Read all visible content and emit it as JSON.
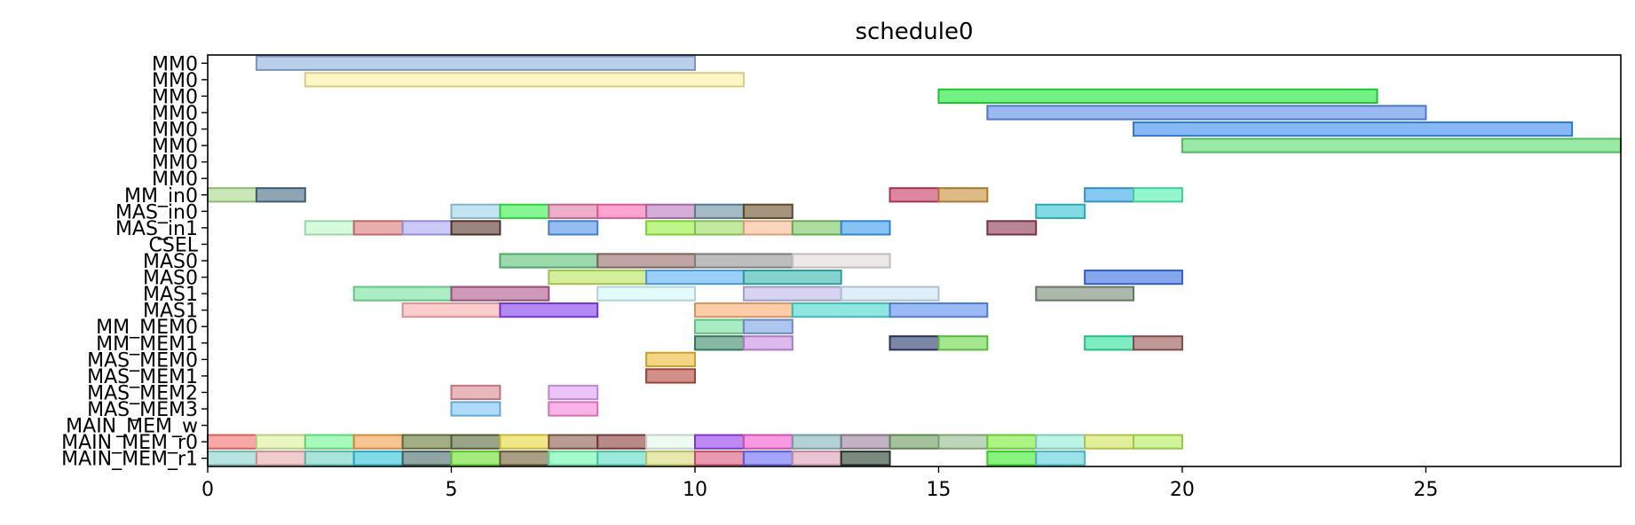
{
  "chart_data": {
    "type": "gantt",
    "title": "schedule0",
    "xlabel": "",
    "ylabel": "",
    "xlim": [
      0,
      29
    ],
    "grid": false,
    "legend": "none",
    "x_ticks": [
      0,
      5,
      10,
      15,
      20,
      25
    ],
    "rows": [
      "MM0",
      "MM0",
      "MM0",
      "MM0",
      "MM0",
      "MM0",
      "MM0",
      "MM0",
      "MM_in0",
      "MAS_in0",
      "MAS_in1",
      "CSEL",
      "MAS0",
      "MAS0",
      "MAS1",
      "MAS1",
      "MM_MEM0",
      "MM_MEM1",
      "MAS_MEM0",
      "MAS_MEM1",
      "MAS_MEM2",
      "MAS_MEM3",
      "MAIN_MEM_w",
      "MAIN_MEM_r0",
      "MAIN_MEM_r1"
    ],
    "tasks": [
      {
        "row": 0,
        "start": 1,
        "end": 10,
        "color": "#8fb2dc"
      },
      {
        "row": 1,
        "start": 2,
        "end": 11,
        "color": "#fdf0a0"
      },
      {
        "row": 2,
        "start": 15,
        "end": 24,
        "color": "#1ee83a"
      },
      {
        "row": 3,
        "start": 16,
        "end": 25,
        "color": "#5b8ee6"
      },
      {
        "row": 4,
        "start": 19,
        "end": 28,
        "color": "#3b8ef0"
      },
      {
        "row": 5,
        "start": 20,
        "end": 29,
        "color": "#5cdc70"
      },
      {
        "row": 8,
        "start": 0,
        "end": 1,
        "color": "#a8d88a"
      },
      {
        "row": 8,
        "start": 1,
        "end": 2,
        "color": "#4a6e86"
      },
      {
        "row": 8,
        "start": 14,
        "end": 15,
        "color": "#c83c64"
      },
      {
        "row": 8,
        "start": 15,
        "end": 16,
        "color": "#c8903c"
      },
      {
        "row": 8,
        "start": 18,
        "end": 19,
        "color": "#3ca8e8"
      },
      {
        "row": 8,
        "start": 19,
        "end": 20,
        "color": "#50f0b0"
      },
      {
        "row": 9,
        "start": 5,
        "end": 6,
        "color": "#9cd4ec"
      },
      {
        "row": 9,
        "start": 6,
        "end": 7,
        "color": "#3cf050"
      },
      {
        "row": 9,
        "start": 7,
        "end": 8,
        "color": "#e07ca8"
      },
      {
        "row": 9,
        "start": 8,
        "end": 9,
        "color": "#fc6cb4"
      },
      {
        "row": 9,
        "start": 9,
        "end": 10,
        "color": "#bc7cc0"
      },
      {
        "row": 9,
        "start": 10,
        "end": 11,
        "color": "#6c90a0"
      },
      {
        "row": 9,
        "start": 11,
        "end": 12,
        "color": "#6c5430"
      },
      {
        "row": 9,
        "start": 17,
        "end": 18,
        "color": "#34c4d4"
      },
      {
        "row": 10,
        "start": 2,
        "end": 3,
        "color": "#bcf8c8"
      },
      {
        "row": 10,
        "start": 3,
        "end": 4,
        "color": "#dc7c7c"
      },
      {
        "row": 10,
        "start": 4,
        "end": 5,
        "color": "#aca8f8"
      },
      {
        "row": 10,
        "start": 5,
        "end": 6,
        "color": "#5c3c30"
      },
      {
        "row": 10,
        "start": 7,
        "end": 8,
        "color": "#5494ec"
      },
      {
        "row": 10,
        "start": 9,
        "end": 10,
        "color": "#98f040"
      },
      {
        "row": 10,
        "start": 10,
        "end": 11,
        "color": "#9cdc64"
      },
      {
        "row": 10,
        "start": 11,
        "end": 12,
        "color": "#fcbc94"
      },
      {
        "row": 10,
        "start": 12,
        "end": 13,
        "color": "#7cc864"
      },
      {
        "row": 10,
        "start": 13,
        "end": 14,
        "color": "#3c9cf0"
      },
      {
        "row": 10,
        "start": 16,
        "end": 17,
        "color": "#8c3c54"
      },
      {
        "row": 12,
        "start": 6,
        "end": 8,
        "color": "#5cc478"
      },
      {
        "row": 12,
        "start": 8,
        "end": 10,
        "color": "#94706c"
      },
      {
        "row": 12,
        "start": 10,
        "end": 12,
        "color": "#949494"
      },
      {
        "row": 12,
        "start": 12,
        "end": 14,
        "color": "#e4dcdc"
      },
      {
        "row": 13,
        "start": 7,
        "end": 9,
        "color": "#bce460"
      },
      {
        "row": 13,
        "start": 9,
        "end": 11,
        "color": "#5cb0f8"
      },
      {
        "row": 13,
        "start": 11,
        "end": 13,
        "color": "#38b8b0"
      },
      {
        "row": 13,
        "start": 18,
        "end": 20,
        "color": "#3c70e4"
      },
      {
        "row": 14,
        "start": 3,
        "end": 5,
        "color": "#78e4a0"
      },
      {
        "row": 14,
        "start": 5,
        "end": 7,
        "color": "#b05c8c"
      },
      {
        "row": 14,
        "start": 8,
        "end": 10,
        "color": "#d4f8f8"
      },
      {
        "row": 14,
        "start": 11,
        "end": 13,
        "color": "#c0b8e8"
      },
      {
        "row": 14,
        "start": 13,
        "end": 15,
        "color": "#cce4f4"
      },
      {
        "row": 14,
        "start": 17,
        "end": 19,
        "color": "#788c78"
      },
      {
        "row": 15,
        "start": 4,
        "end": 6,
        "color": "#fcacac"
      },
      {
        "row": 15,
        "start": 6,
        "end": 8,
        "color": "#8440ec"
      },
      {
        "row": 15,
        "start": 10,
        "end": 12,
        "color": "#fcac74"
      },
      {
        "row": 15,
        "start": 12,
        "end": 14,
        "color": "#4cd8d0"
      },
      {
        "row": 15,
        "start": 14,
        "end": 16,
        "color": "#5c90f0"
      },
      {
        "row": 16,
        "start": 10,
        "end": 11,
        "color": "#74e0a0"
      },
      {
        "row": 16,
        "start": 11,
        "end": 12,
        "color": "#7ca4e4"
      },
      {
        "row": 17,
        "start": 10,
        "end": 11,
        "color": "#3c8c6c"
      },
      {
        "row": 17,
        "start": 11,
        "end": 12,
        "color": "#c890e4"
      },
      {
        "row": 17,
        "start": 14,
        "end": 15,
        "color": "#2c3c6c"
      },
      {
        "row": 17,
        "start": 15,
        "end": 16,
        "color": "#6cd848"
      },
      {
        "row": 17,
        "start": 18,
        "end": 19,
        "color": "#30e09c"
      },
      {
        "row": 17,
        "start": 19,
        "end": 20,
        "color": "#985858"
      },
      {
        "row": 18,
        "start": 9,
        "end": 10,
        "color": "#ecbc38"
      },
      {
        "row": 19,
        "start": 9,
        "end": 10,
        "color": "#b84c40"
      },
      {
        "row": 20,
        "start": 5,
        "end": 6,
        "color": "#dc8c94"
      },
      {
        "row": 20,
        "start": 7,
        "end": 8,
        "color": "#e0a0f8"
      },
      {
        "row": 21,
        "start": 5,
        "end": 6,
        "color": "#7cc4f8"
      },
      {
        "row": 21,
        "start": 7,
        "end": 8,
        "color": "#f884d8"
      },
      {
        "row": 23,
        "start": 0,
        "end": 1,
        "color": "#f47070"
      },
      {
        "row": 23,
        "start": 1,
        "end": 2,
        "color": "#dcf098"
      },
      {
        "row": 23,
        "start": 2,
        "end": 3,
        "color": "#70f890"
      },
      {
        "row": 23,
        "start": 3,
        "end": 4,
        "color": "#f4a050"
      },
      {
        "row": 23,
        "start": 4,
        "end": 5,
        "color": "#6c7c3c"
      },
      {
        "row": 23,
        "start": 5,
        "end": 6,
        "color": "#5c6c3c"
      },
      {
        "row": 23,
        "start": 6,
        "end": 7,
        "color": "#e8d840"
      },
      {
        "row": 23,
        "start": 7,
        "end": 8,
        "color": "#8c6050"
      },
      {
        "row": 23,
        "start": 8,
        "end": 9,
        "color": "#8c4040"
      },
      {
        "row": 23,
        "start": 9,
        "end": 10,
        "color": "#e4f8ec"
      },
      {
        "row": 23,
        "start": 10,
        "end": 11,
        "color": "#9840ec"
      },
      {
        "row": 23,
        "start": 11,
        "end": 12,
        "color": "#f45cd0"
      },
      {
        "row": 23,
        "start": 12,
        "end": 13,
        "color": "#88b4c0"
      },
      {
        "row": 23,
        "start": 13,
        "end": 14,
        "color": "#9c849c"
      },
      {
        "row": 23,
        "start": 14,
        "end": 15,
        "color": "#709c60"
      },
      {
        "row": 23,
        "start": 15,
        "end": 16,
        "color": "#94bc8c"
      },
      {
        "row": 23,
        "start": 16,
        "end": 17,
        "color": "#7cec3c"
      },
      {
        "row": 23,
        "start": 17,
        "end": 18,
        "color": "#94ecd8"
      },
      {
        "row": 23,
        "start": 18,
        "end": 19,
        "color": "#d0e45c"
      },
      {
        "row": 23,
        "start": 19,
        "end": 20,
        "color": "#b4ec5c"
      },
      {
        "row": 24,
        "start": 0,
        "end": 1,
        "color": "#8cd4cc"
      },
      {
        "row": 24,
        "start": 1,
        "end": 2,
        "color": "#e8acb0"
      },
      {
        "row": 24,
        "start": 2,
        "end": 3,
        "color": "#74d4c4"
      },
      {
        "row": 24,
        "start": 3,
        "end": 4,
        "color": "#34c4d8"
      },
      {
        "row": 24,
        "start": 4,
        "end": 5,
        "color": "#4c6c6c"
      },
      {
        "row": 24,
        "start": 5,
        "end": 6,
        "color": "#6ce030"
      },
      {
        "row": 24,
        "start": 6,
        "end": 7,
        "color": "#74643c"
      },
      {
        "row": 24,
        "start": 7,
        "end": 8,
        "color": "#70f8b0"
      },
      {
        "row": 24,
        "start": 8,
        "end": 9,
        "color": "#5cdcc4"
      },
      {
        "row": 24,
        "start": 9,
        "end": 10,
        "color": "#d8dc7c"
      },
      {
        "row": 24,
        "start": 10,
        "end": 11,
        "color": "#dc5c7c"
      },
      {
        "row": 24,
        "start": 11,
        "end": 12,
        "color": "#6c6cf8"
      },
      {
        "row": 24,
        "start": 12,
        "end": 13,
        "color": "#dca0b8"
      },
      {
        "row": 24,
        "start": 13,
        "end": 14,
        "color": "#2c4030"
      },
      {
        "row": 24,
        "start": 16,
        "end": 17,
        "color": "#40ec30"
      },
      {
        "row": 24,
        "start": 17,
        "end": 18,
        "color": "#60d0dc"
      }
    ]
  }
}
